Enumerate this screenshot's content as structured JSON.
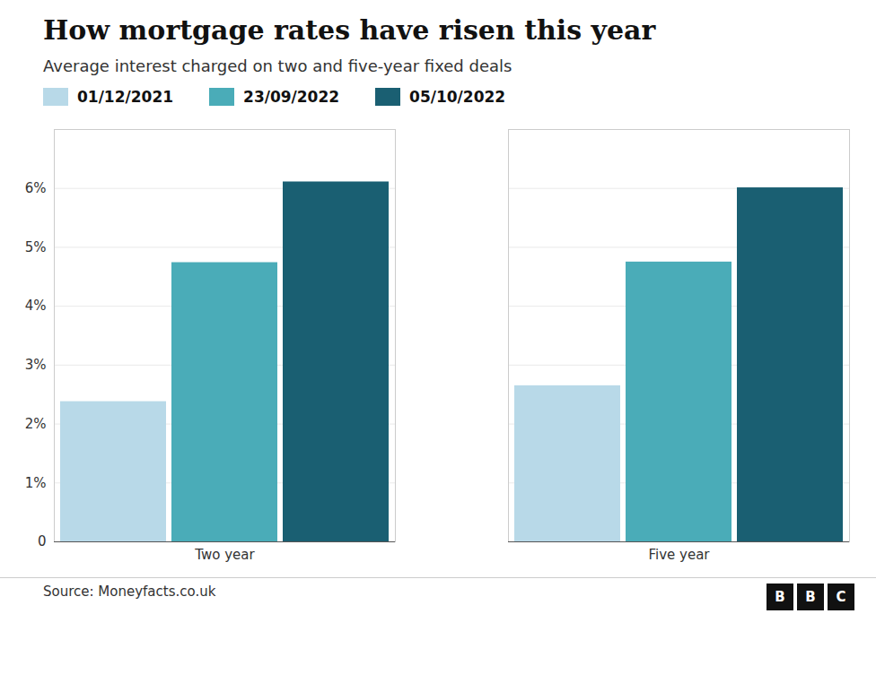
{
  "chart_data": {
    "type": "bar",
    "title": "How mortgage rates have risen this year",
    "subtitle": "Average interest charged on two and five-year fixed deals",
    "categories": [
      "Two year",
      "Five year"
    ],
    "series": [
      {
        "name": "01/12/2021",
        "color": "#b8d9e8",
        "values": [
          2.38,
          2.65
        ]
      },
      {
        "name": "23/09/2022",
        "color": "#4aacb8",
        "values": [
          4.74,
          4.75
        ]
      },
      {
        "name": "05/10/2022",
        "color": "#1a5f72",
        "values": [
          6.11,
          6.01
        ]
      }
    ],
    "ylim": [
      0,
      7
    ],
    "yticks": [
      0,
      {
        "value": 1,
        "label": "1%"
      },
      {
        "value": 2,
        "label": "2%"
      },
      {
        "value": 3,
        "label": "3%"
      },
      {
        "value": 4,
        "label": "4%"
      },
      {
        "value": 5,
        "label": "5%"
      },
      {
        "value": 6,
        "label": "6%"
      }
    ],
    "grid": true,
    "legend": "top-left",
    "source": "Source: Moneyfacts.co.uk",
    "logo": "BBC"
  }
}
